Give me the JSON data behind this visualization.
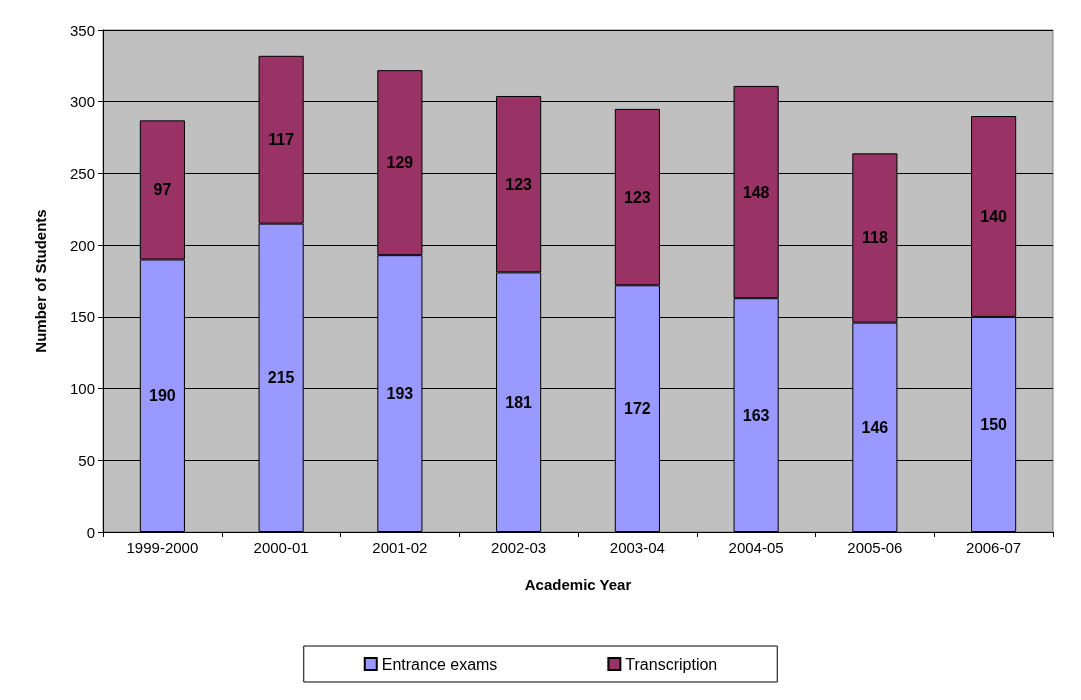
{
  "chart_data": {
    "type": "bar",
    "stacked": true,
    "xlabel": "Academic Year",
    "ylabel": "Number of Students",
    "categories": [
      "1999-2000",
      "2000-01",
      "2001-02",
      "2002-03",
      "2003-04",
      "2004-05",
      "2005-06",
      "2006-07"
    ],
    "series": [
      {
        "name": "Entrance exams",
        "color": "#9999ff",
        "values": [
          190,
          215,
          193,
          181,
          172,
          163,
          146,
          150
        ]
      },
      {
        "name": "Transcription",
        "color": "#993366",
        "values": [
          97,
          117,
          129,
          123,
          123,
          148,
          118,
          140
        ]
      }
    ],
    "ylim": [
      0,
      350
    ],
    "yticks": [
      0,
      50,
      100,
      150,
      200,
      250,
      300,
      350
    ],
    "grid": "y",
    "legend": "bottom",
    "data_labels": true
  }
}
